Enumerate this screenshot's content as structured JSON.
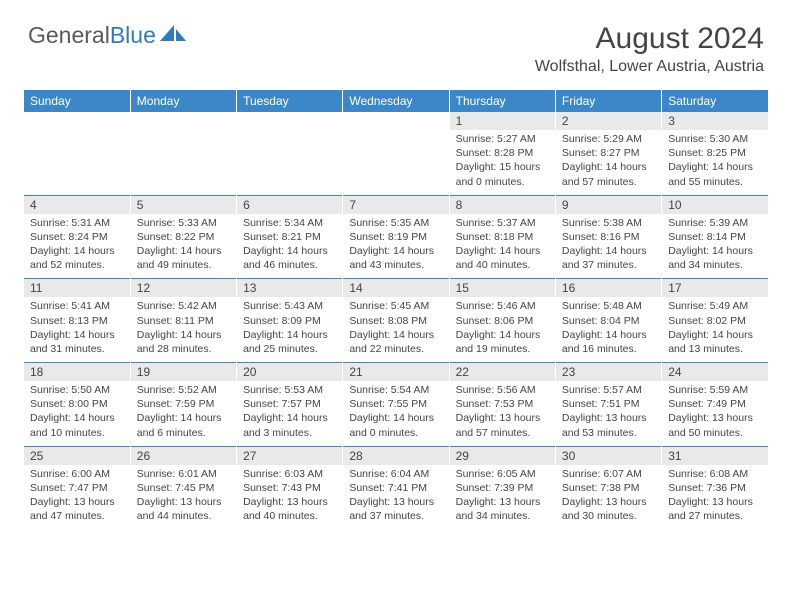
{
  "brand": {
    "part1": "General",
    "part2": "Blue"
  },
  "title": "August 2024",
  "location": "Wolfsthal, Lower Austria, Austria",
  "day_headers": [
    "Sunday",
    "Monday",
    "Tuesday",
    "Wednesday",
    "Thursday",
    "Friday",
    "Saturday"
  ],
  "colors": {
    "header_bg": "#3b87c8",
    "header_fg": "#ffffff",
    "num_bg": "#e9e9e9",
    "text": "#444444"
  },
  "weeks": [
    [
      null,
      null,
      null,
      null,
      {
        "n": "1",
        "sr": "5:27 AM",
        "ss": "8:28 PM",
        "dl": "15 hours and 0 minutes."
      },
      {
        "n": "2",
        "sr": "5:29 AM",
        "ss": "8:27 PM",
        "dl": "14 hours and 57 minutes."
      },
      {
        "n": "3",
        "sr": "5:30 AM",
        "ss": "8:25 PM",
        "dl": "14 hours and 55 minutes."
      }
    ],
    [
      {
        "n": "4",
        "sr": "5:31 AM",
        "ss": "8:24 PM",
        "dl": "14 hours and 52 minutes."
      },
      {
        "n": "5",
        "sr": "5:33 AM",
        "ss": "8:22 PM",
        "dl": "14 hours and 49 minutes."
      },
      {
        "n": "6",
        "sr": "5:34 AM",
        "ss": "8:21 PM",
        "dl": "14 hours and 46 minutes."
      },
      {
        "n": "7",
        "sr": "5:35 AM",
        "ss": "8:19 PM",
        "dl": "14 hours and 43 minutes."
      },
      {
        "n": "8",
        "sr": "5:37 AM",
        "ss": "8:18 PM",
        "dl": "14 hours and 40 minutes."
      },
      {
        "n": "9",
        "sr": "5:38 AM",
        "ss": "8:16 PM",
        "dl": "14 hours and 37 minutes."
      },
      {
        "n": "10",
        "sr": "5:39 AM",
        "ss": "8:14 PM",
        "dl": "14 hours and 34 minutes."
      }
    ],
    [
      {
        "n": "11",
        "sr": "5:41 AM",
        "ss": "8:13 PM",
        "dl": "14 hours and 31 minutes."
      },
      {
        "n": "12",
        "sr": "5:42 AM",
        "ss": "8:11 PM",
        "dl": "14 hours and 28 minutes."
      },
      {
        "n": "13",
        "sr": "5:43 AM",
        "ss": "8:09 PM",
        "dl": "14 hours and 25 minutes."
      },
      {
        "n": "14",
        "sr": "5:45 AM",
        "ss": "8:08 PM",
        "dl": "14 hours and 22 minutes."
      },
      {
        "n": "15",
        "sr": "5:46 AM",
        "ss": "8:06 PM",
        "dl": "14 hours and 19 minutes."
      },
      {
        "n": "16",
        "sr": "5:48 AM",
        "ss": "8:04 PM",
        "dl": "14 hours and 16 minutes."
      },
      {
        "n": "17",
        "sr": "5:49 AM",
        "ss": "8:02 PM",
        "dl": "14 hours and 13 minutes."
      }
    ],
    [
      {
        "n": "18",
        "sr": "5:50 AM",
        "ss": "8:00 PM",
        "dl": "14 hours and 10 minutes."
      },
      {
        "n": "19",
        "sr": "5:52 AM",
        "ss": "7:59 PM",
        "dl": "14 hours and 6 minutes."
      },
      {
        "n": "20",
        "sr": "5:53 AM",
        "ss": "7:57 PM",
        "dl": "14 hours and 3 minutes."
      },
      {
        "n": "21",
        "sr": "5:54 AM",
        "ss": "7:55 PM",
        "dl": "14 hours and 0 minutes."
      },
      {
        "n": "22",
        "sr": "5:56 AM",
        "ss": "7:53 PM",
        "dl": "13 hours and 57 minutes."
      },
      {
        "n": "23",
        "sr": "5:57 AM",
        "ss": "7:51 PM",
        "dl": "13 hours and 53 minutes."
      },
      {
        "n": "24",
        "sr": "5:59 AM",
        "ss": "7:49 PM",
        "dl": "13 hours and 50 minutes."
      }
    ],
    [
      {
        "n": "25",
        "sr": "6:00 AM",
        "ss": "7:47 PM",
        "dl": "13 hours and 47 minutes."
      },
      {
        "n": "26",
        "sr": "6:01 AM",
        "ss": "7:45 PM",
        "dl": "13 hours and 44 minutes."
      },
      {
        "n": "27",
        "sr": "6:03 AM",
        "ss": "7:43 PM",
        "dl": "13 hours and 40 minutes."
      },
      {
        "n": "28",
        "sr": "6:04 AM",
        "ss": "7:41 PM",
        "dl": "13 hours and 37 minutes."
      },
      {
        "n": "29",
        "sr": "6:05 AM",
        "ss": "7:39 PM",
        "dl": "13 hours and 34 minutes."
      },
      {
        "n": "30",
        "sr": "6:07 AM",
        "ss": "7:38 PM",
        "dl": "13 hours and 30 minutes."
      },
      {
        "n": "31",
        "sr": "6:08 AM",
        "ss": "7:36 PM",
        "dl": "13 hours and 27 minutes."
      }
    ]
  ]
}
